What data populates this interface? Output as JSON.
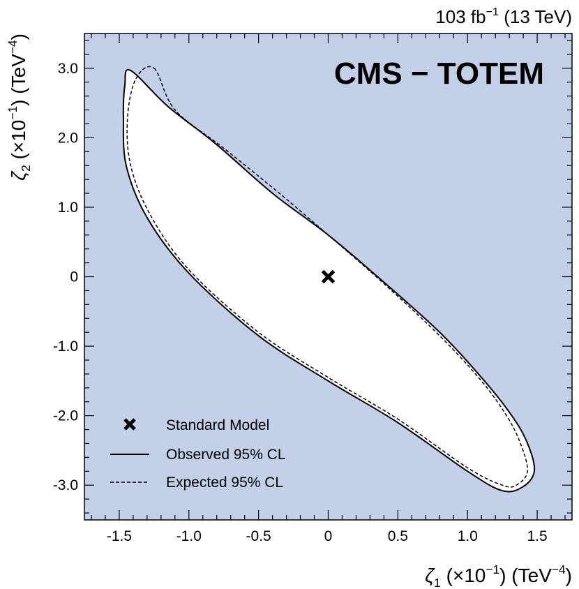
{
  "chart_data": {
    "type": "contour",
    "experiment_label": "CMS − TOTEM",
    "lumi_label": {
      "value": "103 fb",
      "value_sup": "−1",
      "energy": "(13 TeV)"
    },
    "xlabel": {
      "symbol": "ζ",
      "sub": "1",
      "scale": "(×10",
      "scale_sup": "−1",
      "scale_close": ")",
      "unit": "(TeV",
      "unit_sup": "−4",
      "unit_close": ")"
    },
    "ylabel": {
      "symbol": "ζ",
      "sub": "2",
      "scale": "(×10",
      "scale_sup": "−1",
      "scale_close": ")",
      "unit": "(TeV",
      "unit_sup": "−4",
      "unit_close": ")"
    },
    "xlim": [
      -1.75,
      1.75
    ],
    "ylim": [
      -3.5,
      3.5
    ],
    "xticks": [
      {
        "value": -1.5,
        "label": "-1.5"
      },
      {
        "value": -1.0,
        "label": "-1.0"
      },
      {
        "value": -0.5,
        "label": "-0.5"
      },
      {
        "value": 0,
        "label": "0"
      },
      {
        "value": 0.5,
        "label": "0.5"
      },
      {
        "value": 1.0,
        "label": "1.0"
      },
      {
        "value": 1.5,
        "label": "1.5"
      }
    ],
    "yticks": [
      {
        "value": -3.0,
        "label": "-3.0"
      },
      {
        "value": -2.0,
        "label": "-2.0"
      },
      {
        "value": -1.0,
        "label": "-1.0"
      },
      {
        "value": 0,
        "label": "0"
      },
      {
        "value": 1.0,
        "label": "1.0"
      },
      {
        "value": 2.0,
        "label": "2.0"
      },
      {
        "value": 3.0,
        "label": "3.0"
      }
    ],
    "excluded_region_color": "#c4d0e8",
    "series": [
      {
        "name": "Standard Model",
        "kind": "point",
        "marker": "x",
        "points": [
          [
            0,
            0
          ]
        ]
      },
      {
        "name": "Observed 95% CL",
        "kind": "contour",
        "style": "solid",
        "points": [
          [
            -1.42,
            2.97
          ],
          [
            -1.15,
            2.45
          ],
          [
            -0.8,
            1.9
          ],
          [
            -0.4,
            1.2
          ],
          [
            0,
            0.6
          ],
          [
            0.4,
            -0.08
          ],
          [
            0.8,
            -0.8
          ],
          [
            1.1,
            -1.45
          ],
          [
            1.3,
            -1.95
          ],
          [
            1.42,
            -2.35
          ],
          [
            1.48,
            -2.78
          ],
          [
            1.4,
            -3.02
          ],
          [
            1.25,
            -3.08
          ],
          [
            1.0,
            -2.8
          ],
          [
            0.5,
            -2.1
          ],
          [
            0,
            -1.5
          ],
          [
            -0.5,
            -0.85
          ],
          [
            -1.0,
            0.05
          ],
          [
            -1.3,
            0.85
          ],
          [
            -1.45,
            1.6
          ],
          [
            -1.47,
            2.3
          ],
          [
            -1.46,
            2.75
          ],
          [
            -1.42,
            2.97
          ]
        ]
      },
      {
        "name": "Expected 95% CL",
        "kind": "contour",
        "style": "dashed",
        "points": [
          [
            -1.25,
            3.0
          ],
          [
            -1.1,
            2.4
          ],
          [
            -0.75,
            1.85
          ],
          [
            -0.35,
            1.2
          ],
          [
            0,
            0.6
          ],
          [
            0.4,
            -0.1
          ],
          [
            0.8,
            -0.85
          ],
          [
            1.1,
            -1.5
          ],
          [
            1.28,
            -2.0
          ],
          [
            1.38,
            -2.4
          ],
          [
            1.43,
            -2.8
          ],
          [
            1.35,
            -3.0
          ],
          [
            1.25,
            -3.0
          ],
          [
            1.0,
            -2.75
          ],
          [
            0.5,
            -2.05
          ],
          [
            0,
            -1.45
          ],
          [
            -0.5,
            -0.8
          ],
          [
            -1.0,
            0.1
          ],
          [
            -1.28,
            0.9
          ],
          [
            -1.42,
            1.62
          ],
          [
            -1.44,
            2.3
          ],
          [
            -1.38,
            2.85
          ],
          [
            -1.25,
            3.0
          ]
        ]
      }
    ],
    "legend": {
      "placement": "bottom-left",
      "entries": [
        "Standard Model",
        "Observed 95% CL",
        "Expected 95% CL"
      ]
    }
  }
}
